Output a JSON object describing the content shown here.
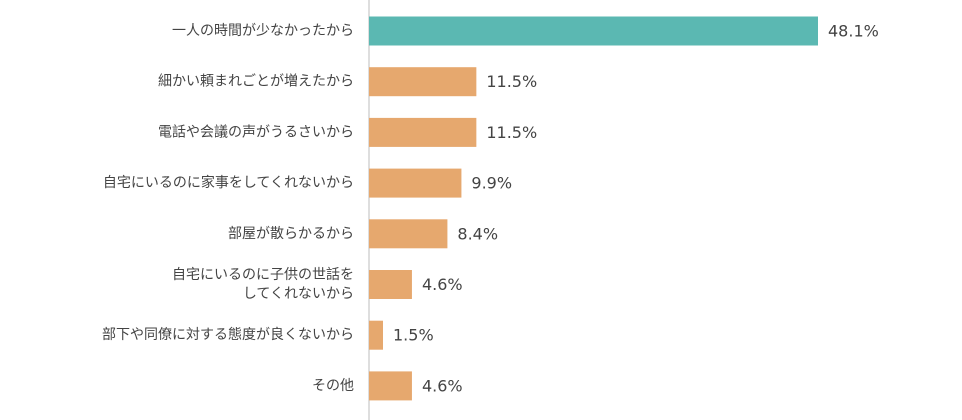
{
  "chart_data": {
    "type": "bar",
    "orientation": "horizontal",
    "title": "",
    "xlabel": "",
    "ylabel": "",
    "categories": [
      "一人の時間が少なかったから",
      "細かい頼まれごとが増えたから",
      "電話や会議の声がうるさいから",
      "自宅にいるのに家事をしてくれないから",
      "部屋が散らかるから",
      "自宅にいるのに子供の世話をしてくれないから",
      "部下や同僚に対する態度が良くないから",
      "その他"
    ],
    "category_lines": [
      [
        "一人の時間が少なかったから"
      ],
      [
        "細かい頼まれごとが増えたから"
      ],
      [
        "電話や会議の声がうるさいから"
      ],
      [
        "自宅にいるのに家事をしてくれないから"
      ],
      [
        "部屋が散らかるから"
      ],
      [
        "自宅にいるのに子供の世話を",
        "してくれないから"
      ],
      [
        "部下や同僚に対する態度が良くないから"
      ],
      [
        "その他"
      ]
    ],
    "values": [
      48.1,
      11.5,
      11.5,
      9.9,
      8.4,
      4.6,
      1.5,
      4.6
    ],
    "value_labels": [
      "48.1%",
      "11.5%",
      "11.5%",
      "9.9%",
      "8.4%",
      "4.6%",
      "1.5%",
      "4.6%"
    ],
    "xlim": [
      0,
      100
    ],
    "grid": false,
    "legend": "none",
    "colors": {
      "highlight": "#5bb8b2",
      "default": "#e6a86e",
      "axis": "#bdbdbd",
      "text": "#444444"
    },
    "highlight_index": 0
  }
}
